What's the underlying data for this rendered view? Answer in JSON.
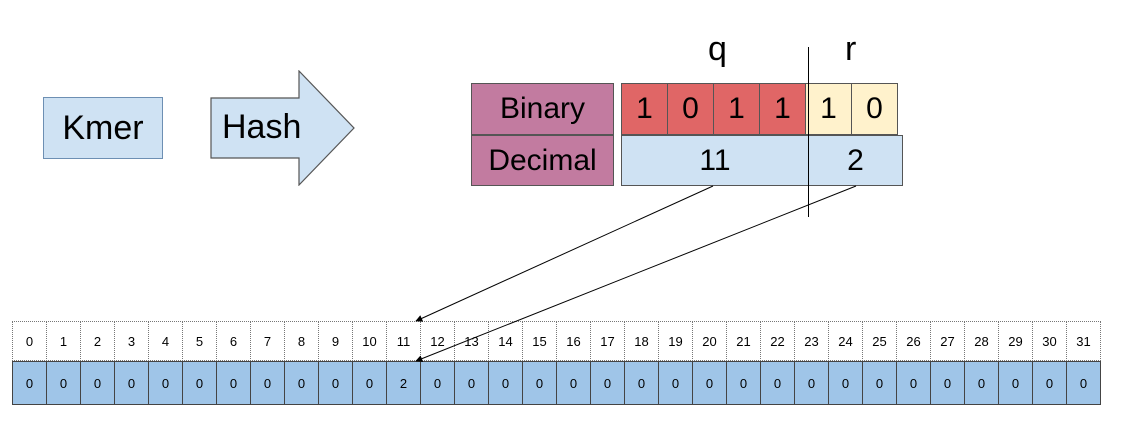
{
  "kmer_label": "Kmer",
  "hash_label": "Hash",
  "q_label": "q",
  "r_label": "r",
  "binary_label": "Binary",
  "decimal_label": "Decimal",
  "bits": [
    {
      "value": "1",
      "part": "q"
    },
    {
      "value": "0",
      "part": "q"
    },
    {
      "value": "1",
      "part": "q"
    },
    {
      "value": "1",
      "part": "q"
    },
    {
      "value": "1",
      "part": "r"
    },
    {
      "value": "0",
      "part": "r"
    }
  ],
  "decimal_q": "11",
  "decimal_r": "2",
  "indices": [
    "0",
    "1",
    "2",
    "3",
    "4",
    "5",
    "6",
    "7",
    "8",
    "9",
    "10",
    "11",
    "12",
    "13",
    "14",
    "15",
    "16",
    "17",
    "18",
    "19",
    "20",
    "21",
    "22",
    "23",
    "24",
    "25",
    "26",
    "27",
    "28",
    "29",
    "30",
    "31"
  ],
  "values": [
    "0",
    "0",
    "0",
    "0",
    "0",
    "0",
    "0",
    "0",
    "0",
    "0",
    "0",
    "2",
    "0",
    "0",
    "0",
    "0",
    "0",
    "0",
    "0",
    "0",
    "0",
    "0",
    "0",
    "0",
    "0",
    "0",
    "0",
    "0",
    "0",
    "0",
    "0",
    "0"
  ],
  "colors": {
    "q_bits": "#e06666",
    "r_bits": "#fff2cc",
    "decimal_cells": "#cfe2f3",
    "header_cells": "#c27ba0",
    "array_values": "#9fc5e8"
  }
}
